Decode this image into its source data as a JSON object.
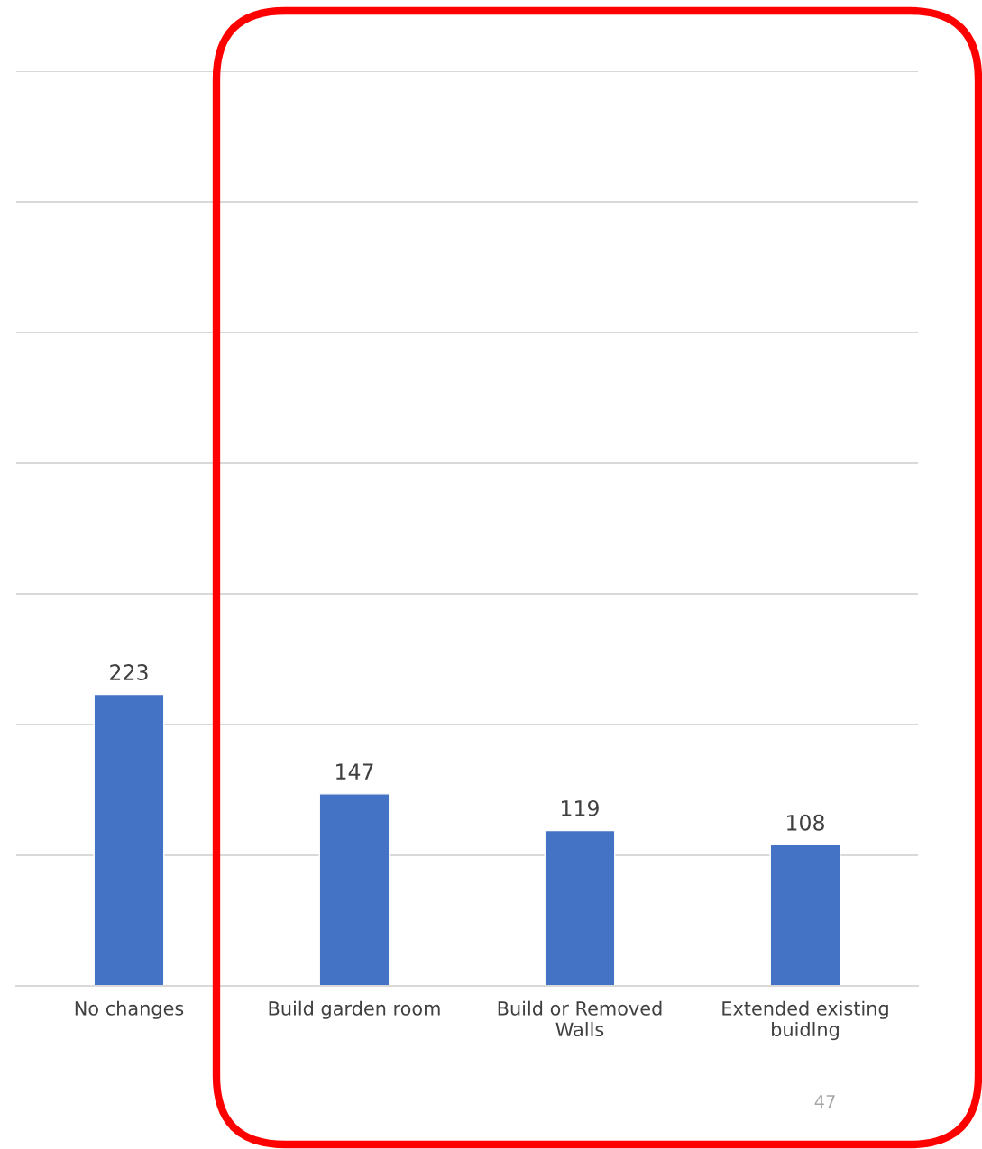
{
  "chart_data": {
    "type": "bar",
    "categories": [
      "No changes",
      "Build garden room",
      "Build or Removed\nWalls",
      "Extended existing\nbuidlng"
    ],
    "values": [
      223,
      147,
      119,
      108
    ],
    "color": "#4472c4",
    "ylim": [
      0,
      700
    ],
    "yticks": [
      {
        "value": 0,
        "label": null
      },
      {
        "value": 100,
        "label": null
      },
      {
        "value": 200,
        "label": null
      },
      {
        "value": 300,
        "label": null
      },
      {
        "value": 400,
        "label": null
      },
      {
        "value": 500,
        "label": null
      },
      {
        "value": 600,
        "label": null
      },
      {
        "value": 700,
        "label": null
      }
    ],
    "grid": "y",
    "tick_labels": "x",
    "data_labels": true,
    "annotations": [
      "47"
    ]
  }
}
